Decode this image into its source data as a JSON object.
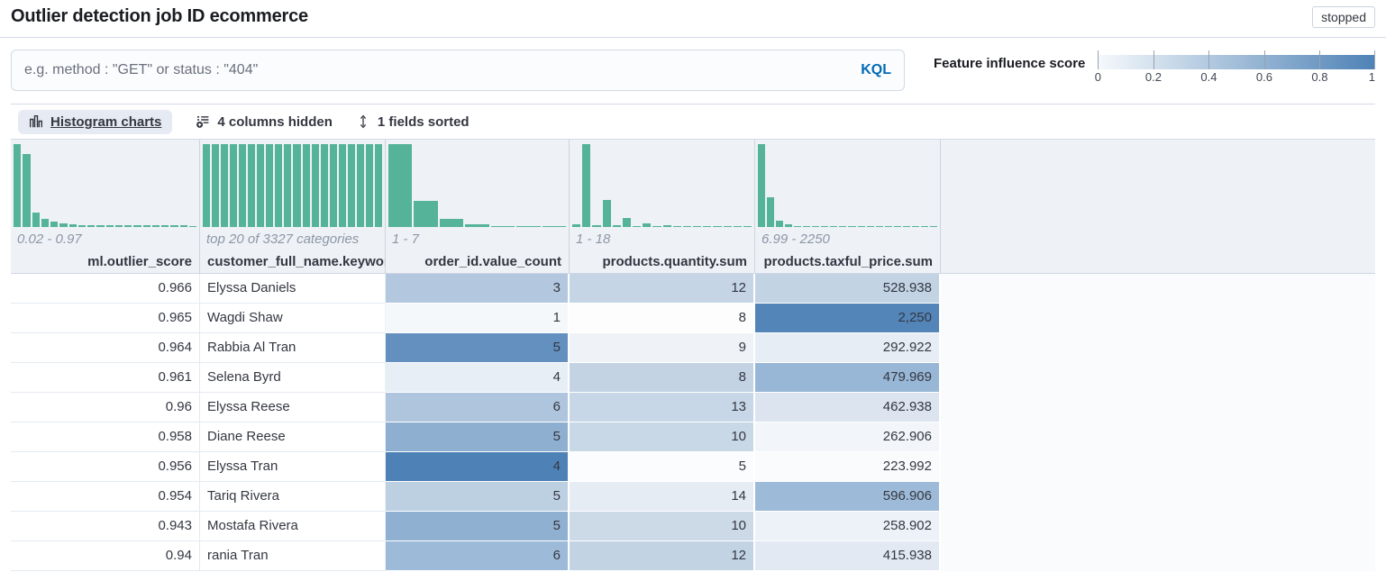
{
  "page": {
    "title": "Outlier detection job ID ecommerce",
    "status_badge": "stopped"
  },
  "search": {
    "placeholder": "e.g. method : \"GET\" or status : \"404\"",
    "language_label": "KQL"
  },
  "legend": {
    "title": "Feature influence score",
    "ticks": [
      "0",
      "0.2",
      "0.4",
      "0.6",
      "0.8",
      "1"
    ],
    "gradient_start": "#f6f9fc",
    "gradient_end": "#4e82b6"
  },
  "toolbar": {
    "histogram_button": "Histogram charts",
    "columns_hidden": "4 columns hidden",
    "fields_sorted": "1 fields sorted"
  },
  "colors": {
    "histogram_bar": "#54b399",
    "header_bg": "#eef2f7"
  },
  "table": {
    "columns": [
      {
        "id": "ml.outlier_score",
        "label": "ml.outlier_score",
        "range": "0.02 - 0.97",
        "align": "right",
        "histogram": [
          100,
          88,
          17,
          10,
          6,
          4,
          3,
          2.5,
          2,
          2,
          2,
          2,
          1.8,
          2,
          2,
          2.2,
          2.5,
          2,
          2,
          1.2
        ]
      },
      {
        "id": "customer_full_name.keyword",
        "label": "customer_full_name.keyword",
        "range": "top 20 of 3327 categories",
        "align": "left",
        "histogram": [
          100,
          100,
          100,
          100,
          100,
          100,
          100,
          100,
          100,
          100,
          100,
          100,
          100,
          100,
          100,
          100,
          100,
          100,
          100,
          100
        ]
      },
      {
        "id": "order_id.value_count",
        "label": "order_id.value_count",
        "range": "1 - 7",
        "align": "right",
        "histogram": [
          100,
          31,
          10,
          3,
          1.5,
          1.2,
          1
        ]
      },
      {
        "id": "products.quantity.sum",
        "label": "products.quantity.sum",
        "range": "1 - 18",
        "align": "right",
        "histogram": [
          3,
          100,
          2,
          33,
          2,
          11,
          1,
          4.5,
          1,
          2.5,
          0.8,
          1.5,
          0.8,
          1,
          0.8,
          0.8,
          0.5,
          0.8
        ]
      },
      {
        "id": "products.taxful_price.sum",
        "label": "products.taxful_price.sum",
        "range": "6.99 - 2250",
        "align": "right",
        "histogram": [
          100,
          36,
          8,
          3,
          1.5,
          1,
          0.7,
          0.5,
          0.4,
          0.3,
          0.3,
          0.3,
          0.3,
          0.3,
          0.3,
          0.3,
          0.3,
          0.3,
          0.6,
          0.4
        ]
      }
    ],
    "rows": [
      {
        "cells": [
          {
            "v": "0.966"
          },
          {
            "v": "Elyssa Daniels"
          },
          {
            "v": "3",
            "bg": "#b3c8de"
          },
          {
            "v": "12",
            "bg": "#c5d5e6"
          },
          {
            "v": "528.938",
            "bg": "#c2d3e4"
          }
        ]
      },
      {
        "cells": [
          {
            "v": "0.965"
          },
          {
            "v": "Wagdi Shaw"
          },
          {
            "v": "1",
            "bg": "#f5f8fb"
          },
          {
            "v": "8",
            "bg": "#fdfdfe"
          },
          {
            "v": "2,250",
            "bg": "#5385b9"
          }
        ]
      },
      {
        "cells": [
          {
            "v": "0.964"
          },
          {
            "v": "Rabbia Al Tran"
          },
          {
            "v": "5",
            "bg": "#6390bf"
          },
          {
            "v": "9",
            "bg": "#eff3f8"
          },
          {
            "v": "292.922",
            "bg": "#e7edf5"
          }
        ]
      },
      {
        "cells": [
          {
            "v": "0.961"
          },
          {
            "v": "Selena Byrd"
          },
          {
            "v": "4",
            "bg": "#e7eef5"
          },
          {
            "v": "8",
            "bg": "#c3d3e3"
          },
          {
            "v": "479.969",
            "bg": "#98b6d5"
          }
        ]
      },
      {
        "cells": [
          {
            "v": "0.96"
          },
          {
            "v": "Elyssa Reese"
          },
          {
            "v": "6",
            "bg": "#aec5dd"
          },
          {
            "v": "13",
            "bg": "#c8d7e7"
          },
          {
            "v": "462.938",
            "bg": "#dbe4ef"
          }
        ]
      },
      {
        "cells": [
          {
            "v": "0.958"
          },
          {
            "v": "Diane Reese"
          },
          {
            "v": "5",
            "bg": "#8fafd0"
          },
          {
            "v": "10",
            "bg": "#c9d8e7"
          },
          {
            "v": "262.906",
            "bg": "#f2f6fa"
          }
        ]
      },
      {
        "cells": [
          {
            "v": "0.956"
          },
          {
            "v": "Elyssa Tran"
          },
          {
            "v": "4",
            "bg": "#4e82b6"
          },
          {
            "v": "5",
            "bg": "#fbfcfe"
          },
          {
            "v": "223.992",
            "bg": "#fafbfd"
          }
        ]
      },
      {
        "cells": [
          {
            "v": "0.954"
          },
          {
            "v": "Tariq Rivera"
          },
          {
            "v": "5",
            "bg": "#bdd0e2"
          },
          {
            "v": "14",
            "bg": "#e6ecf4"
          },
          {
            "v": "596.906",
            "bg": "#9dbbd9"
          }
        ]
      },
      {
        "cells": [
          {
            "v": "0.943"
          },
          {
            "v": "Mostafa Rivera"
          },
          {
            "v": "5",
            "bg": "#8fb0d1"
          },
          {
            "v": "10",
            "bg": "#ccdae8"
          },
          {
            "v": "258.902",
            "bg": "#edf2f8"
          }
        ]
      },
      {
        "cells": [
          {
            "v": "0.94"
          },
          {
            "v": "rania Tran"
          },
          {
            "v": "6",
            "bg": "#9dbbd9"
          },
          {
            "v": "12",
            "bg": "#c2d3e4"
          },
          {
            "v": "415.938",
            "bg": "#e2e9f2"
          }
        ]
      }
    ]
  }
}
